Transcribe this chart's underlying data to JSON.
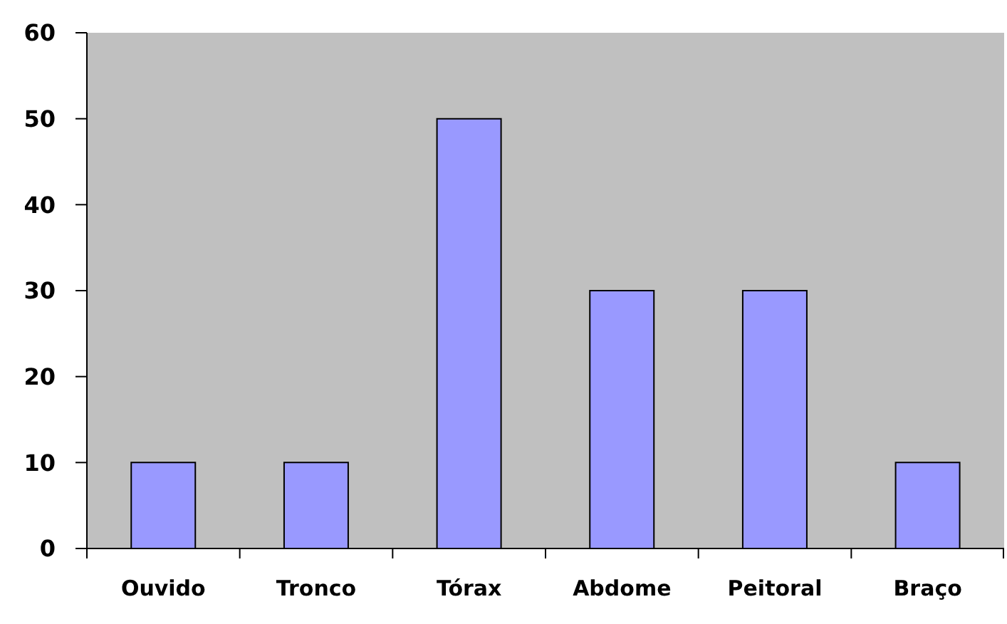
{
  "chart_data": {
    "type": "bar",
    "categories": [
      "Ouvido",
      "Tronco",
      "Tórax",
      "Abdome",
      "Peitoral",
      "Braço"
    ],
    "values": [
      10,
      10,
      50,
      30,
      30,
      10
    ],
    "color": "#9999ff",
    "ylim": [
      0,
      60
    ],
    "yticks": [
      0,
      10,
      20,
      30,
      40,
      50,
      60
    ]
  }
}
